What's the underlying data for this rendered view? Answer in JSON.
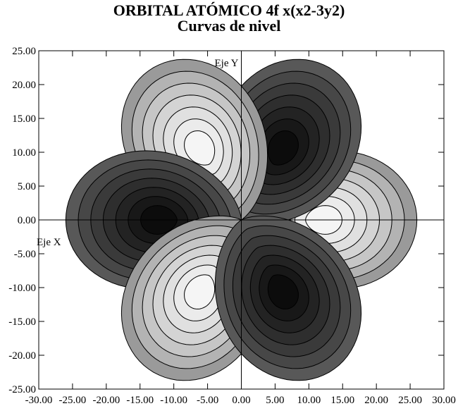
{
  "chart_data": {
    "type": "contour",
    "title": "ORBITAL ATÓMICO 4f x(x2-3y2)",
    "subtitle": "Curvas de nivel",
    "xlabel": "Eje X",
    "ylabel": "Eje Y",
    "xlim": [
      -30,
      30
    ],
    "ylim": [
      -25,
      25
    ],
    "x_ticks": [
      "-30.00",
      "-25.00",
      "-20.00",
      "-15.00",
      "-10.00",
      "-5.00",
      "0.00",
      "5.00",
      "10.00",
      "15.00",
      "20.00",
      "25.00",
      "30.00"
    ],
    "y_ticks": [
      "25.00",
      "20.00",
      "15.00",
      "10.00",
      "5.00",
      "0.00",
      "-5.00",
      "-10.00",
      "-15.00",
      "-20.00",
      "-25.00"
    ],
    "lobes": [
      {
        "angle_deg": 0,
        "center": [
          12,
          0
        ],
        "outer_extent": 26,
        "sign": "+"
      },
      {
        "angle_deg": 60,
        "center": [
          6,
          10.4
        ],
        "outer_extent": 26,
        "sign": "-"
      },
      {
        "angle_deg": 120,
        "center": [
          -6,
          10.4
        ],
        "outer_extent": 26,
        "sign": "+"
      },
      {
        "angle_deg": 180,
        "center": [
          -12,
          0
        ],
        "outer_extent": 26,
        "sign": "-"
      },
      {
        "angle_deg": 240,
        "center": [
          -6,
          -10.4
        ],
        "outer_extent": 26,
        "sign": "+"
      },
      {
        "angle_deg": 300,
        "center": [
          6,
          -10.4
        ],
        "outer_extent": 26,
        "sign": "-"
      }
    ],
    "contour_levels": 7,
    "colors": {
      "positive": [
        "#9a9a9a",
        "#b3b3b3",
        "#c6c6c6",
        "#d4d4d4",
        "#e0e0e0",
        "#ebebeb",
        "#f5f5f5"
      ],
      "negative": [
        "#585858",
        "#474747",
        "#3a3a3a",
        "#2e2e2e",
        "#232323",
        "#181818",
        "#0c0c0c"
      ],
      "line": "#000000"
    }
  }
}
